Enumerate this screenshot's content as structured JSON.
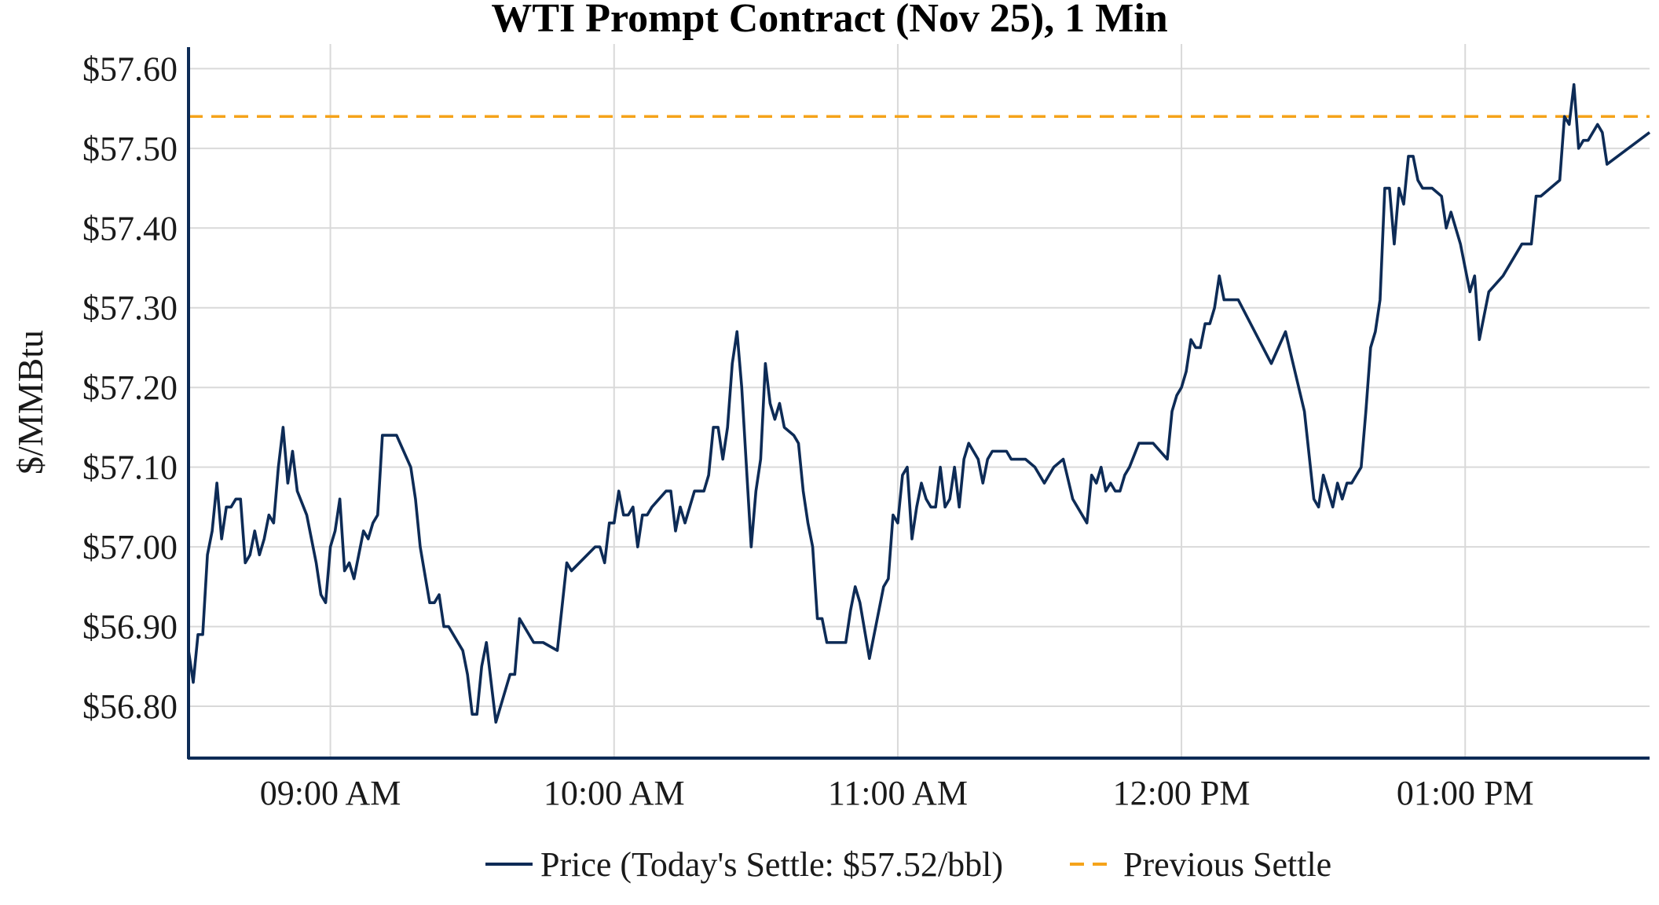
{
  "chart_data": {
    "type": "line",
    "title": "WTI Prompt Contract (Nov 25), 1 Min",
    "ylabel": "$/MMBtu",
    "xlabel": "",
    "ylim": [
      56.735,
      57.625
    ],
    "xlim": [
      "08:30",
      "13:39"
    ],
    "grid": true,
    "legend_position": "bottom-center",
    "x_ticks": [
      {
        "time": "09:00",
        "label": "09:00 AM"
      },
      {
        "time": "10:00",
        "label": "10:00 AM"
      },
      {
        "time": "11:00",
        "label": "11:00 AM"
      },
      {
        "time": "12:00",
        "label": "12:00 PM"
      },
      {
        "time": "13:00",
        "label": "01:00 PM"
      }
    ],
    "y_ticks": [
      {
        "value": 56.8,
        "label": "$56.80"
      },
      {
        "value": 56.9,
        "label": "$56.90"
      },
      {
        "value": 57.0,
        "label": "$57.00"
      },
      {
        "value": 57.1,
        "label": "$57.10"
      },
      {
        "value": 57.2,
        "label": "$57.20"
      },
      {
        "value": 57.3,
        "label": "$57.30"
      },
      {
        "value": 57.4,
        "label": "$57.40"
      },
      {
        "value": 57.5,
        "label": "$57.50"
      },
      {
        "value": 57.6,
        "label": "$57.60"
      }
    ],
    "series": [
      {
        "name": "Price (Today's Settle: $57.52/bbl)",
        "color": "#0d2b56",
        "style": "solid",
        "points": [
          [
            "08:30",
            56.87
          ],
          [
            "08:31",
            56.83
          ],
          [
            "08:32",
            56.89
          ],
          [
            "08:33",
            56.89
          ],
          [
            "08:34",
            56.99
          ],
          [
            "08:35",
            57.02
          ],
          [
            "08:36",
            57.08
          ],
          [
            "08:37",
            57.01
          ],
          [
            "08:38",
            57.05
          ],
          [
            "08:39",
            57.05
          ],
          [
            "08:40",
            57.06
          ],
          [
            "08:41",
            57.06
          ],
          [
            "08:42",
            56.98
          ],
          [
            "08:43",
            56.99
          ],
          [
            "08:44",
            57.02
          ],
          [
            "08:45",
            56.99
          ],
          [
            "08:46",
            57.01
          ],
          [
            "08:47",
            57.04
          ],
          [
            "08:48",
            57.03
          ],
          [
            "08:49",
            57.1
          ],
          [
            "08:50",
            57.15
          ],
          [
            "08:51",
            57.08
          ],
          [
            "08:52",
            57.12
          ],
          [
            "08:53",
            57.07
          ],
          [
            "08:55",
            57.04
          ],
          [
            "08:56",
            57.01
          ],
          [
            "08:57",
            56.98
          ],
          [
            "08:58",
            56.94
          ],
          [
            "08:59",
            56.93
          ],
          [
            "09:00",
            57.0
          ],
          [
            "09:01",
            57.02
          ],
          [
            "09:02",
            57.06
          ],
          [
            "09:03",
            56.97
          ],
          [
            "09:04",
            56.98
          ],
          [
            "09:05",
            56.96
          ],
          [
            "09:06",
            56.99
          ],
          [
            "09:07",
            57.02
          ],
          [
            "09:08",
            57.01
          ],
          [
            "09:09",
            57.03
          ],
          [
            "09:10",
            57.04
          ],
          [
            "09:11",
            57.14
          ],
          [
            "09:14",
            57.14
          ],
          [
            "09:17",
            57.1
          ],
          [
            "09:18",
            57.06
          ],
          [
            "09:19",
            57.0
          ],
          [
            "09:21",
            56.93
          ],
          [
            "09:22",
            56.93
          ],
          [
            "09:23",
            56.94
          ],
          [
            "09:24",
            56.9
          ],
          [
            "09:25",
            56.9
          ],
          [
            "09:28",
            56.87
          ],
          [
            "09:29",
            56.84
          ],
          [
            "09:30",
            56.79
          ],
          [
            "09:31",
            56.79
          ],
          [
            "09:32",
            56.85
          ],
          [
            "09:33",
            56.88
          ],
          [
            "09:34",
            56.83
          ],
          [
            "09:35",
            56.78
          ],
          [
            "09:38",
            56.84
          ],
          [
            "09:39",
            56.84
          ],
          [
            "09:40",
            56.91
          ],
          [
            "09:41",
            56.9
          ],
          [
            "09:43",
            56.88
          ],
          [
            "09:45",
            56.88
          ],
          [
            "09:48",
            56.87
          ],
          [
            "09:50",
            56.98
          ],
          [
            "09:51",
            56.97
          ],
          [
            "09:56",
            57.0
          ],
          [
            "09:57",
            57.0
          ],
          [
            "09:58",
            56.98
          ],
          [
            "09:59",
            57.03
          ],
          [
            "10:00",
            57.03
          ],
          [
            "10:01",
            57.07
          ],
          [
            "10:02",
            57.04
          ],
          [
            "10:03",
            57.04
          ],
          [
            "10:04",
            57.05
          ],
          [
            "10:05",
            57.0
          ],
          [
            "10:06",
            57.04
          ],
          [
            "10:07",
            57.04
          ],
          [
            "10:08",
            57.05
          ],
          [
            "10:11",
            57.07
          ],
          [
            "10:12",
            57.07
          ],
          [
            "10:13",
            57.02
          ],
          [
            "10:14",
            57.05
          ],
          [
            "10:15",
            57.03
          ],
          [
            "10:17",
            57.07
          ],
          [
            "10:19",
            57.07
          ],
          [
            "10:20",
            57.09
          ],
          [
            "10:21",
            57.15
          ],
          [
            "10:22",
            57.15
          ],
          [
            "10:23",
            57.11
          ],
          [
            "10:24",
            57.15
          ],
          [
            "10:25",
            57.23
          ],
          [
            "10:26",
            57.27
          ],
          [
            "10:27",
            57.2
          ],
          [
            "10:29",
            57.0
          ],
          [
            "10:30",
            57.07
          ],
          [
            "10:31",
            57.11
          ],
          [
            "10:32",
            57.23
          ],
          [
            "10:33",
            57.18
          ],
          [
            "10:34",
            57.16
          ],
          [
            "10:35",
            57.18
          ],
          [
            "10:36",
            57.15
          ],
          [
            "10:38",
            57.14
          ],
          [
            "10:39",
            57.13
          ],
          [
            "10:40",
            57.07
          ],
          [
            "10:41",
            57.03
          ],
          [
            "10:42",
            57.0
          ],
          [
            "10:43",
            56.91
          ],
          [
            "10:44",
            56.91
          ],
          [
            "10:45",
            56.88
          ],
          [
            "10:49",
            56.88
          ],
          [
            "10:50",
            56.92
          ],
          [
            "10:51",
            56.95
          ],
          [
            "10:52",
            56.93
          ],
          [
            "10:54",
            56.86
          ],
          [
            "10:56",
            56.92
          ],
          [
            "10:57",
            56.95
          ],
          [
            "10:58",
            56.96
          ],
          [
            "10:59",
            57.04
          ],
          [
            "11:00",
            57.03
          ],
          [
            "11:01",
            57.09
          ],
          [
            "11:02",
            57.1
          ],
          [
            "11:03",
            57.01
          ],
          [
            "11:04",
            57.05
          ],
          [
            "11:05",
            57.08
          ],
          [
            "11:06",
            57.06
          ],
          [
            "11:07",
            57.05
          ],
          [
            "11:08",
            57.05
          ],
          [
            "11:09",
            57.1
          ],
          [
            "11:10",
            57.05
          ],
          [
            "11:11",
            57.06
          ],
          [
            "11:12",
            57.1
          ],
          [
            "11:13",
            57.05
          ],
          [
            "11:14",
            57.11
          ],
          [
            "11:15",
            57.13
          ],
          [
            "11:17",
            57.11
          ],
          [
            "11:18",
            57.08
          ],
          [
            "11:19",
            57.11
          ],
          [
            "11:20",
            57.12
          ],
          [
            "11:23",
            57.12
          ],
          [
            "11:24",
            57.11
          ],
          [
            "11:27",
            57.11
          ],
          [
            "11:29",
            57.1
          ],
          [
            "11:31",
            57.08
          ],
          [
            "11:33",
            57.1
          ],
          [
            "11:35",
            57.11
          ],
          [
            "11:37",
            57.06
          ],
          [
            "11:40",
            57.03
          ],
          [
            "11:41",
            57.09
          ],
          [
            "11:42",
            57.08
          ],
          [
            "11:43",
            57.1
          ],
          [
            "11:44",
            57.07
          ],
          [
            "11:45",
            57.08
          ],
          [
            "11:46",
            57.07
          ],
          [
            "11:47",
            57.07
          ],
          [
            "11:48",
            57.09
          ],
          [
            "11:49",
            57.1
          ],
          [
            "11:51",
            57.13
          ],
          [
            "11:54",
            57.13
          ],
          [
            "11:57",
            57.11
          ],
          [
            "11:58",
            57.17
          ],
          [
            "11:59",
            57.19
          ],
          [
            "12:00",
            57.2
          ],
          [
            "12:01",
            57.22
          ],
          [
            "12:02",
            57.26
          ],
          [
            "12:03",
            57.25
          ],
          [
            "12:04",
            57.25
          ],
          [
            "12:05",
            57.28
          ],
          [
            "12:06",
            57.28
          ],
          [
            "12:07",
            57.3
          ],
          [
            "12:08",
            57.34
          ],
          [
            "12:09",
            57.31
          ],
          [
            "12:12",
            57.31
          ],
          [
            "12:19",
            57.23
          ],
          [
            "12:22",
            57.27
          ],
          [
            "12:26",
            57.17
          ],
          [
            "12:28",
            57.06
          ],
          [
            "12:29",
            57.05
          ],
          [
            "12:30",
            57.09
          ],
          [
            "12:32",
            57.05
          ],
          [
            "12:33",
            57.08
          ],
          [
            "12:34",
            57.06
          ],
          [
            "12:35",
            57.08
          ],
          [
            "12:36",
            57.08
          ],
          [
            "12:38",
            57.1
          ],
          [
            "12:39",
            57.17
          ],
          [
            "12:40",
            57.25
          ],
          [
            "12:41",
            57.27
          ],
          [
            "12:42",
            57.31
          ],
          [
            "12:43",
            57.45
          ],
          [
            "12:44",
            57.45
          ],
          [
            "12:45",
            57.38
          ],
          [
            "12:46",
            57.45
          ],
          [
            "12:47",
            57.43
          ],
          [
            "12:48",
            57.49
          ],
          [
            "12:49",
            57.49
          ],
          [
            "12:50",
            57.46
          ],
          [
            "12:51",
            57.45
          ],
          [
            "12:53",
            57.45
          ],
          [
            "12:55",
            57.44
          ],
          [
            "12:56",
            57.4
          ],
          [
            "12:57",
            57.42
          ],
          [
            "12:59",
            57.38
          ],
          [
            "13:00",
            57.35
          ],
          [
            "13:01",
            57.32
          ],
          [
            "13:02",
            57.34
          ],
          [
            "13:03",
            57.26
          ],
          [
            "13:05",
            57.32
          ],
          [
            "13:08",
            57.34
          ],
          [
            "13:12",
            57.38
          ],
          [
            "13:13",
            57.38
          ],
          [
            "13:14",
            57.38
          ],
          [
            "13:15",
            57.44
          ],
          [
            "13:16",
            57.44
          ],
          [
            "13:20",
            57.46
          ],
          [
            "13:21",
            57.54
          ],
          [
            "13:22",
            57.53
          ],
          [
            "13:23",
            57.58
          ],
          [
            "13:24",
            57.5
          ],
          [
            "13:25",
            57.51
          ],
          [
            "13:26",
            57.51
          ],
          [
            "13:28",
            57.53
          ],
          [
            "13:29",
            57.52
          ],
          [
            "13:30",
            57.48
          ],
          [
            "13:39",
            57.52
          ]
        ]
      },
      {
        "name": "Previous Settle",
        "color": "#f5a31a",
        "style": "dashed",
        "value": 57.54
      }
    ]
  }
}
